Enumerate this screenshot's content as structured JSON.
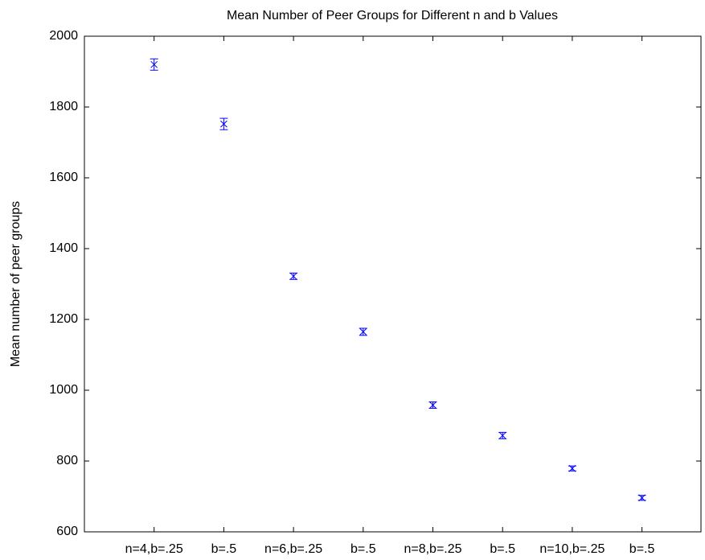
{
  "chart_data": {
    "type": "errorbar",
    "title": "Mean Number of Peer Groups for Different n and b Values",
    "y_label": "Mean number of peer groups",
    "categories": [
      "n=4,b=.25",
      "b=.5",
      "n=6,b=.25",
      "b=.5",
      "n=8,b=.25",
      "b=.5",
      "n=10,b=.25",
      "b=.5"
    ],
    "values": [
      1920,
      1752,
      1322,
      1165,
      958,
      872,
      779,
      696
    ],
    "errors": [
      16,
      16,
      9,
      10,
      9,
      9,
      7,
      7
    ],
    "color": "#0000ff",
    "ylim": [
      600,
      2000
    ],
    "yticks": [
      600,
      800,
      1000,
      1200,
      1400,
      1600,
      1800,
      2000
    ]
  }
}
